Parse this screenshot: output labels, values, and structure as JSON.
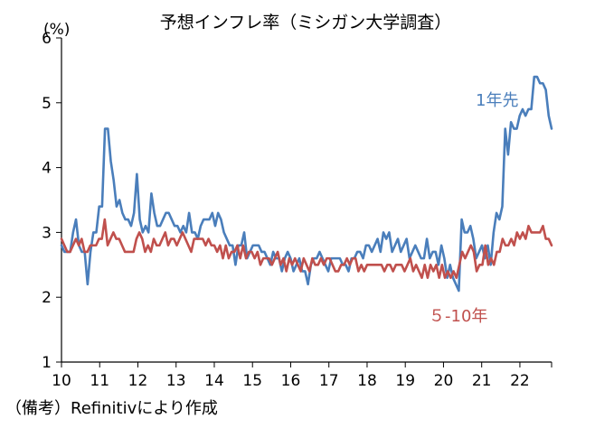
{
  "chart_data": {
    "type": "line",
    "title": "予想インフレ率（ミシガン大学調査）",
    "ylabel": "(%)",
    "xlabel": "",
    "ylim": [
      1,
      6
    ],
    "xlim": [
      10,
      22.83
    ],
    "y_ticks": [
      "1",
      "2",
      "3",
      "4",
      "5",
      "6"
    ],
    "x_ticks": [
      "10",
      "11",
      "12",
      "13",
      "14",
      "15",
      "16",
      "17",
      "18",
      "19",
      "20",
      "21",
      "22"
    ],
    "grid": false,
    "series": [
      {
        "name": "1年先",
        "color": "#4a7ebb",
        "values": [
          2.8,
          2.7,
          2.7,
          2.7,
          3.0,
          3.2,
          2.8,
          2.7,
          2.7,
          2.2,
          2.7,
          3.0,
          3.0,
          3.4,
          3.4,
          4.6,
          4.6,
          4.1,
          3.8,
          3.4,
          3.5,
          3.3,
          3.2,
          3.2,
          3.1,
          3.3,
          3.9,
          3.2,
          3.0,
          3.1,
          3.0,
          3.6,
          3.3,
          3.1,
          3.1,
          3.2,
          3.3,
          3.3,
          3.2,
          3.1,
          3.1,
          3.0,
          3.1,
          3.0,
          3.3,
          3.0,
          3.0,
          2.9,
          3.1,
          3.2,
          3.2,
          3.2,
          3.3,
          3.1,
          3.3,
          3.2,
          3.0,
          2.9,
          2.8,
          2.8,
          2.5,
          2.8,
          2.8,
          3.0,
          2.6,
          2.7,
          2.8,
          2.8,
          2.8,
          2.7,
          2.7,
          2.6,
          2.5,
          2.7,
          2.6,
          2.6,
          2.4,
          2.6,
          2.7,
          2.6,
          2.4,
          2.5,
          2.6,
          2.4,
          2.4,
          2.2,
          2.5,
          2.6,
          2.6,
          2.7,
          2.6,
          2.5,
          2.4,
          2.6,
          2.6,
          2.6,
          2.6,
          2.5,
          2.5,
          2.4,
          2.6,
          2.6,
          2.7,
          2.7,
          2.6,
          2.8,
          2.8,
          2.7,
          2.8,
          2.9,
          2.7,
          3.0,
          2.9,
          3.0,
          2.7,
          2.8,
          2.9,
          2.7,
          2.8,
          2.9,
          2.6,
          2.7,
          2.8,
          2.7,
          2.6,
          2.6,
          2.9,
          2.6,
          2.7,
          2.7,
          2.5,
          2.8,
          2.6,
          2.3,
          2.5,
          2.3,
          2.2,
          2.1,
          3.2,
          3.0,
          3.0,
          3.1,
          2.9,
          2.6,
          2.7,
          2.8,
          2.6,
          2.8,
          2.5,
          3.0,
          3.3,
          3.2,
          3.4,
          4.6,
          4.2,
          4.7,
          4.6,
          4.6,
          4.8,
          4.9,
          4.8,
          4.9,
          4.9,
          5.4,
          5.4,
          5.3,
          5.3,
          5.2,
          4.8,
          4.6
        ]
      },
      {
        "name": "5-10年",
        "color": "#c0504d",
        "values": [
          2.9,
          2.8,
          2.7,
          2.7,
          2.8,
          2.9,
          2.8,
          2.9,
          2.7,
          2.7,
          2.8,
          2.8,
          2.8,
          2.9,
          2.9,
          3.2,
          2.8,
          2.9,
          3.0,
          2.9,
          2.9,
          2.8,
          2.7,
          2.7,
          2.7,
          2.7,
          2.9,
          3.0,
          2.9,
          2.7,
          2.8,
          2.7,
          2.9,
          2.8,
          2.8,
          2.9,
          3.0,
          2.8,
          2.9,
          2.9,
          2.8,
          2.9,
          3.0,
          2.9,
          2.8,
          2.7,
          2.9,
          2.9,
          2.9,
          2.9,
          2.8,
          2.9,
          2.8,
          2.8,
          2.7,
          2.8,
          2.6,
          2.8,
          2.6,
          2.7,
          2.7,
          2.8,
          2.6,
          2.8,
          2.6,
          2.7,
          2.7,
          2.6,
          2.7,
          2.5,
          2.6,
          2.6,
          2.6,
          2.5,
          2.6,
          2.7,
          2.5,
          2.6,
          2.4,
          2.6,
          2.5,
          2.6,
          2.5,
          2.4,
          2.6,
          2.5,
          2.4,
          2.6,
          2.5,
          2.5,
          2.6,
          2.5,
          2.6,
          2.6,
          2.5,
          2.4,
          2.4,
          2.5,
          2.5,
          2.6,
          2.5,
          2.6,
          2.6,
          2.4,
          2.5,
          2.4,
          2.5,
          2.5,
          2.5,
          2.5,
          2.5,
          2.5,
          2.4,
          2.5,
          2.5,
          2.4,
          2.5,
          2.5,
          2.5,
          2.4,
          2.5,
          2.6,
          2.4,
          2.5,
          2.4,
          2.3,
          2.5,
          2.3,
          2.5,
          2.4,
          2.5,
          2.3,
          2.5,
          2.3,
          2.4,
          2.3,
          2.4,
          2.3,
          2.5,
          2.7,
          2.6,
          2.7,
          2.8,
          2.7,
          2.4,
          2.5,
          2.5,
          2.8,
          2.5,
          2.6,
          2.5,
          2.7,
          2.7,
          2.9,
          2.8,
          2.8,
          2.9,
          2.8,
          3.0,
          2.9,
          3.0,
          2.9,
          3.1,
          3.0,
          3.0,
          3.0,
          3.0,
          3.1,
          2.9,
          2.9,
          2.8
        ]
      }
    ],
    "annotations": [
      {
        "text": "1年先",
        "series": "1年先"
      },
      {
        "text": "5-10年",
        "series": "5-10年"
      }
    ]
  },
  "labels": {
    "series1_label": "1年先",
    "series2_label": "５-10年"
  },
  "footnote": "（備考）Refinitivにより作成"
}
